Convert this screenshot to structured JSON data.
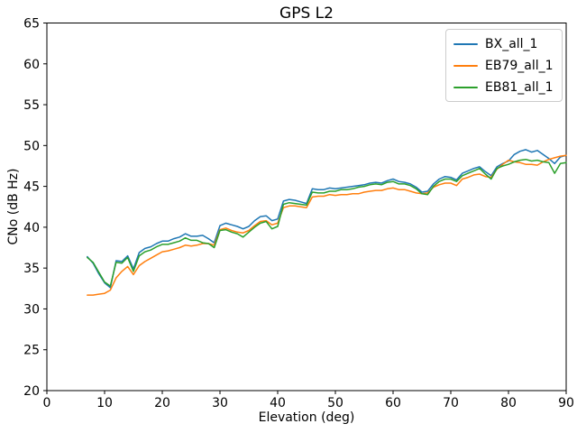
{
  "chart_data": {
    "type": "line",
    "title": "GPS L2",
    "xlabel": "Elevation (deg)",
    "ylabel": "CNo (dB Hz)",
    "xlim": [
      0,
      90
    ],
    "ylim": [
      20,
      65
    ],
    "xticks": [
      0,
      10,
      20,
      30,
      40,
      50,
      60,
      70,
      80,
      90
    ],
    "yticks": [
      20,
      25,
      30,
      35,
      40,
      45,
      50,
      55,
      60,
      65
    ],
    "grid": false,
    "legend_position": "upper right",
    "axis_color": "#000000",
    "x": [
      7,
      8,
      9,
      10,
      11,
      12,
      13,
      14,
      15,
      16,
      17,
      18,
      19,
      20,
      21,
      22,
      23,
      24,
      25,
      26,
      27,
      28,
      29,
      30,
      31,
      32,
      33,
      34,
      35,
      36,
      37,
      38,
      39,
      40,
      41,
      42,
      43,
      44,
      45,
      46,
      47,
      48,
      49,
      50,
      51,
      52,
      53,
      54,
      55,
      56,
      57,
      58,
      59,
      60,
      61,
      62,
      63,
      64,
      65,
      66,
      67,
      68,
      69,
      70,
      71,
      72,
      73,
      74,
      75,
      76,
      77,
      78,
      79,
      80,
      81,
      82,
      83,
      84,
      85,
      86,
      87,
      88,
      89,
      90
    ],
    "series": [
      {
        "name": "BX_all_1",
        "color": "#1f77b4",
        "values": [
          36.4,
          35.6,
          34.3,
          33.2,
          32.6,
          35.9,
          35.8,
          36.5,
          34.9,
          36.9,
          37.4,
          37.6,
          38.0,
          38.3,
          38.3,
          38.6,
          38.8,
          39.2,
          38.9,
          38.9,
          39.0,
          38.6,
          38.1,
          40.2,
          40.5,
          40.3,
          40.1,
          39.8,
          40.1,
          40.8,
          41.3,
          41.4,
          40.8,
          41.0,
          43.2,
          43.4,
          43.3,
          43.1,
          42.9,
          44.7,
          44.6,
          44.6,
          44.8,
          44.7,
          44.8,
          44.9,
          45.0,
          45.1,
          45.2,
          45.4,
          45.5,
          45.4,
          45.7,
          45.9,
          45.6,
          45.5,
          45.3,
          44.9,
          44.3,
          44.4,
          45.3,
          45.9,
          46.2,
          46.1,
          45.8,
          46.6,
          46.9,
          47.2,
          47.4,
          46.8,
          46.3,
          47.4,
          47.8,
          48.1,
          48.9,
          49.3,
          49.5,
          49.2,
          49.4,
          48.9,
          48.4,
          47.8,
          48.6,
          48.8
        ]
      },
      {
        "name": "EB79_all_1",
        "color": "#ff7f0e",
        "values": [
          31.7,
          31.7,
          31.8,
          31.9,
          32.3,
          33.8,
          34.6,
          35.2,
          34.2,
          35.3,
          35.8,
          36.2,
          36.6,
          37.0,
          37.1,
          37.3,
          37.5,
          37.8,
          37.7,
          37.8,
          38.0,
          38.0,
          37.8,
          39.7,
          39.9,
          39.6,
          39.4,
          39.3,
          39.6,
          40.2,
          40.7,
          40.8,
          40.3,
          40.5,
          42.4,
          42.6,
          42.6,
          42.5,
          42.4,
          43.7,
          43.8,
          43.8,
          44.0,
          43.9,
          44.0,
          44.0,
          44.1,
          44.1,
          44.3,
          44.4,
          44.5,
          44.5,
          44.7,
          44.8,
          44.6,
          44.6,
          44.4,
          44.2,
          44.1,
          44.2,
          44.9,
          45.2,
          45.4,
          45.4,
          45.1,
          45.9,
          46.1,
          46.4,
          46.5,
          46.2,
          46.1,
          47.1,
          47.7,
          48.2,
          48.0,
          47.9,
          47.7,
          47.7,
          47.6,
          48.0,
          48.3,
          48.5,
          48.7,
          48.8
        ]
      },
      {
        "name": "EB81_all_1",
        "color": "#2ca02c",
        "values": [
          36.3,
          35.7,
          34.5,
          33.3,
          32.8,
          35.7,
          35.6,
          36.3,
          34.6,
          36.5,
          37.0,
          37.2,
          37.6,
          37.9,
          37.9,
          38.1,
          38.3,
          38.7,
          38.4,
          38.4,
          38.1,
          38.0,
          37.5,
          39.6,
          39.7,
          39.4,
          39.2,
          38.8,
          39.4,
          40.0,
          40.5,
          40.7,
          39.8,
          40.1,
          42.8,
          43.0,
          42.9,
          42.8,
          42.7,
          44.3,
          44.2,
          44.2,
          44.4,
          44.4,
          44.6,
          44.6,
          44.7,
          44.9,
          45.0,
          45.2,
          45.3,
          45.2,
          45.5,
          45.6,
          45.3,
          45.3,
          45.1,
          44.7,
          44.1,
          44.0,
          45.0,
          45.6,
          45.9,
          45.9,
          45.6,
          46.3,
          46.6,
          46.9,
          47.2,
          46.5,
          45.9,
          47.2,
          47.5,
          47.7,
          48.0,
          48.2,
          48.3,
          48.1,
          48.2,
          48.0,
          47.9,
          46.6,
          47.8,
          47.9
        ]
      }
    ]
  }
}
